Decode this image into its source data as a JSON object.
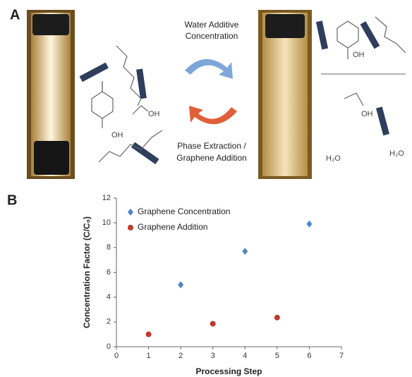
{
  "panel_a": {
    "label": "A",
    "top_arrow_text": [
      "Water Additive",
      "Concentration"
    ],
    "bottom_arrow_text": [
      "Phase Extraction /",
      "Graphene Addition"
    ],
    "left_labels": [
      "OH",
      "OH"
    ],
    "right_labels": [
      "OH",
      "OH",
      "H₂O",
      "H₂O"
    ]
  },
  "panel_b": {
    "label": "B"
  },
  "chart_data": {
    "type": "scatter",
    "x_label": "Processing Step",
    "y_label": "Concentration Factor (C/C₀)",
    "xlim": [
      0,
      7
    ],
    "xticks": [
      0,
      1,
      2,
      3,
      4,
      5,
      6,
      7
    ],
    "ylim": [
      0,
      12
    ],
    "yticks": [
      0,
      2,
      4,
      6,
      8,
      10,
      12
    ],
    "grid": false,
    "legend": "upper left",
    "series": [
      {
        "name": "Graphene Concentration",
        "color": "#4a86c8",
        "marker": "diamond",
        "x": [
          2,
          4,
          6
        ],
        "values": [
          5,
          7.7,
          9.9
        ]
      },
      {
        "name": "Graphene Addition",
        "color": "#c0392b",
        "marker": "circle",
        "x": [
          1,
          3,
          5
        ],
        "values": [
          1,
          1.85,
          2.35
        ]
      }
    ]
  }
}
